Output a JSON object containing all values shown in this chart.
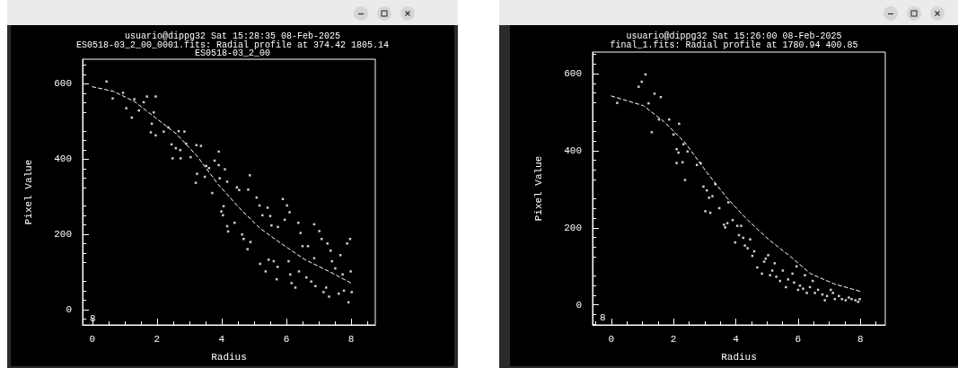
{
  "chart_data": [
    {
      "type": "scatter",
      "title": "usuario@dippg32 Sat 15:28:35 08-Feb-2025",
      "subtitle": "ES0518-03_2_00_0001.fits: Radial profile at 374.42 1805.14\nES0518-03_2_00",
      "xlabel": "Radius",
      "ylabel": "Pixel Value",
      "annotations": [
        "8"
      ],
      "xlim": [
        -0.3,
        8.75
      ],
      "ylim": [
        -40,
        665
      ],
      "xticks": [
        0,
        2,
        4,
        6,
        8
      ],
      "yticks": [
        0,
        200,
        400,
        600
      ],
      "series": [
        {
          "type": "scatter",
          "color": "#ffffff",
          "marker": "square",
          "x": [
            0.44,
            0.63,
            0.95,
            1.05,
            1.22,
            1.3,
            1.44,
            1.59,
            1.69,
            1.84,
            1.81,
            1.9,
            1.96,
            1.96,
            2.21,
            2.35,
            2.45,
            2.48,
            2.58,
            2.67,
            2.73,
            2.72,
            2.85,
            2.9,
            3.04,
            3.2,
            3.22,
            3.24,
            3.36,
            3.48,
            3.52,
            3.61,
            3.71,
            3.78,
            3.91,
            3.91,
            3.94,
            3.99,
            4.04,
            4.06,
            4.1,
            4.17,
            4.17,
            4.2,
            4.4,
            4.47,
            4.54,
            4.63,
            4.68,
            4.82,
            4.87,
            4.8,
            4.89,
            5.08,
            5.17,
            5.19,
            5.26,
            5.36,
            5.42,
            5.45,
            5.5,
            5.54,
            5.61,
            5.73,
            5.74,
            5.7,
            5.89,
            5.95,
            6.02,
            6.1,
            6.07,
            6.12,
            6.16,
            6.28,
            6.37,
            6.39,
            6.44,
            6.5,
            6.62,
            6.67,
            6.77,
            6.86,
            6.86,
            6.9,
            7.02,
            7.09,
            7.15,
            7.23,
            7.27,
            7.32,
            7.37,
            7.41,
            7.51,
            7.67,
            7.62,
            7.74,
            7.78,
            7.88,
            7.97,
            7.92,
            7.99,
            8.02
          ],
          "values": [
            606,
            561,
            576,
            535,
            510,
            559,
            529,
            551,
            566,
            494,
            471,
            524,
            566,
            463,
            473,
            484,
            439,
            402,
            429,
            474,
            402,
            424,
            473,
            441,
            405,
            337,
            437,
            361,
            435,
            353,
            382,
            376,
            310,
            396,
            420,
            384,
            349,
            261,
            251,
            275,
            373,
            340,
            222,
            208,
            231,
            325,
            318,
            200,
            188,
            319,
            357,
            161,
            180,
            298,
            277,
            122,
            251,
            102,
            271,
            133,
            249,
            224,
            129,
            114,
            220,
            81,
            294,
            239,
            277,
            259,
            129,
            94,
            71,
            59,
            231,
            102,
            204,
            169,
            86,
            169,
            75,
            227,
            137,
            63,
            209,
            188,
            47,
            59,
            176,
            35,
            157,
            129,
            110,
            145,
            43,
            94,
            51,
            176,
            188,
            20,
            102,
            47
          ]
        },
        {
          "type": "line",
          "color": "#ffffff",
          "marker": "none",
          "line_style": "dashed",
          "x": [
            0,
            0.65,
            1.3,
            1.95,
            2.6,
            3.24,
            3.89,
            4.54,
            5.19,
            5.84,
            6.58,
            7.32,
            8.0
          ],
          "values": [
            592,
            580,
            553,
            510,
            467,
            408,
            333,
            271,
            216,
            176,
            133,
            102,
            71
          ]
        }
      ]
    },
    {
      "type": "scatter",
      "title": "usuario@dippg32 Sat 15:26:00 08-Feb-2025",
      "subtitle": "final_1.fits: Radial profile at 1780.94 400.85",
      "xlabel": "Radius",
      "ylabel": "Pixel Value",
      "annotations": [
        "8"
      ],
      "xlim": [
        -0.6,
        8.8
      ],
      "ylim": [
        -52,
        656
      ],
      "xticks": [
        0,
        2,
        4,
        6,
        8
      ],
      "yticks": [
        0,
        200,
        400,
        600
      ],
      "series": [
        {
          "type": "scatter",
          "color": "#ffffff",
          "marker": "square",
          "x": [
            0.19,
            0.88,
            0.98,
            1.1,
            1.2,
            1.3,
            1.39,
            1.53,
            1.59,
            1.86,
            2.0,
            2.18,
            2.1,
            2.1,
            2.16,
            2.29,
            2.37,
            2.32,
            2.45,
            2.75,
            2.87,
            2.96,
            3.02,
            3.07,
            3.14,
            3.18,
            3.25,
            3.34,
            3.47,
            3.62,
            3.66,
            3.76,
            3.73,
            3.9,
            3.98,
            4.05,
            4.1,
            4.17,
            4.24,
            4.29,
            4.38,
            4.46,
            4.53,
            4.59,
            4.69,
            4.84,
            4.91,
            4.96,
            5.04,
            5.1,
            5.17,
            5.25,
            5.3,
            5.42,
            5.51,
            5.61,
            5.68,
            5.82,
            5.87,
            5.95,
            6.0,
            6.06,
            6.16,
            6.22,
            6.28,
            6.38,
            6.47,
            6.54,
            6.64,
            6.78,
            6.86,
            6.93,
            7.05,
            7.12,
            7.18,
            7.31,
            7.41,
            7.53,
            7.63,
            7.72,
            7.84,
            7.93,
            7.98
          ],
          "values": [
            524,
            566,
            579,
            598,
            523,
            448,
            548,
            481,
            539,
            481,
            442,
            470,
            404,
            368,
            395,
            370,
            324,
            417,
            398,
            363,
            368,
            307,
            243,
            297,
            278,
            239,
            282,
            313,
            251,
            208,
            201,
            266,
            212,
            220,
            162,
            205,
            181,
            205,
            174,
            154,
            147,
            170,
            127,
            139,
            97,
            81,
            112,
            120,
            129,
            77,
            89,
            108,
            73,
            62,
            89,
            46,
            66,
            81,
            58,
            100,
            39,
            50,
            42,
            77,
            31,
            46,
            62,
            31,
            39,
            27,
            12,
            23,
            39,
            31,
            15,
            23,
            15,
            12,
            19,
            15,
            12,
            8,
            15
          ]
        },
        {
          "type": "line",
          "color": "#ffffff",
          "marker": "none",
          "line_style": "dashed",
          "x": [
            0,
            1.03,
            1.7,
            2.37,
            3.04,
            3.71,
            4.38,
            5.05,
            5.73,
            6.4,
            7.17,
            8.0
          ],
          "values": [
            542,
            517,
            475,
            421,
            347,
            278,
            220,
            170,
            127,
            81,
            54,
            35
          ]
        }
      ]
    }
  ]
}
